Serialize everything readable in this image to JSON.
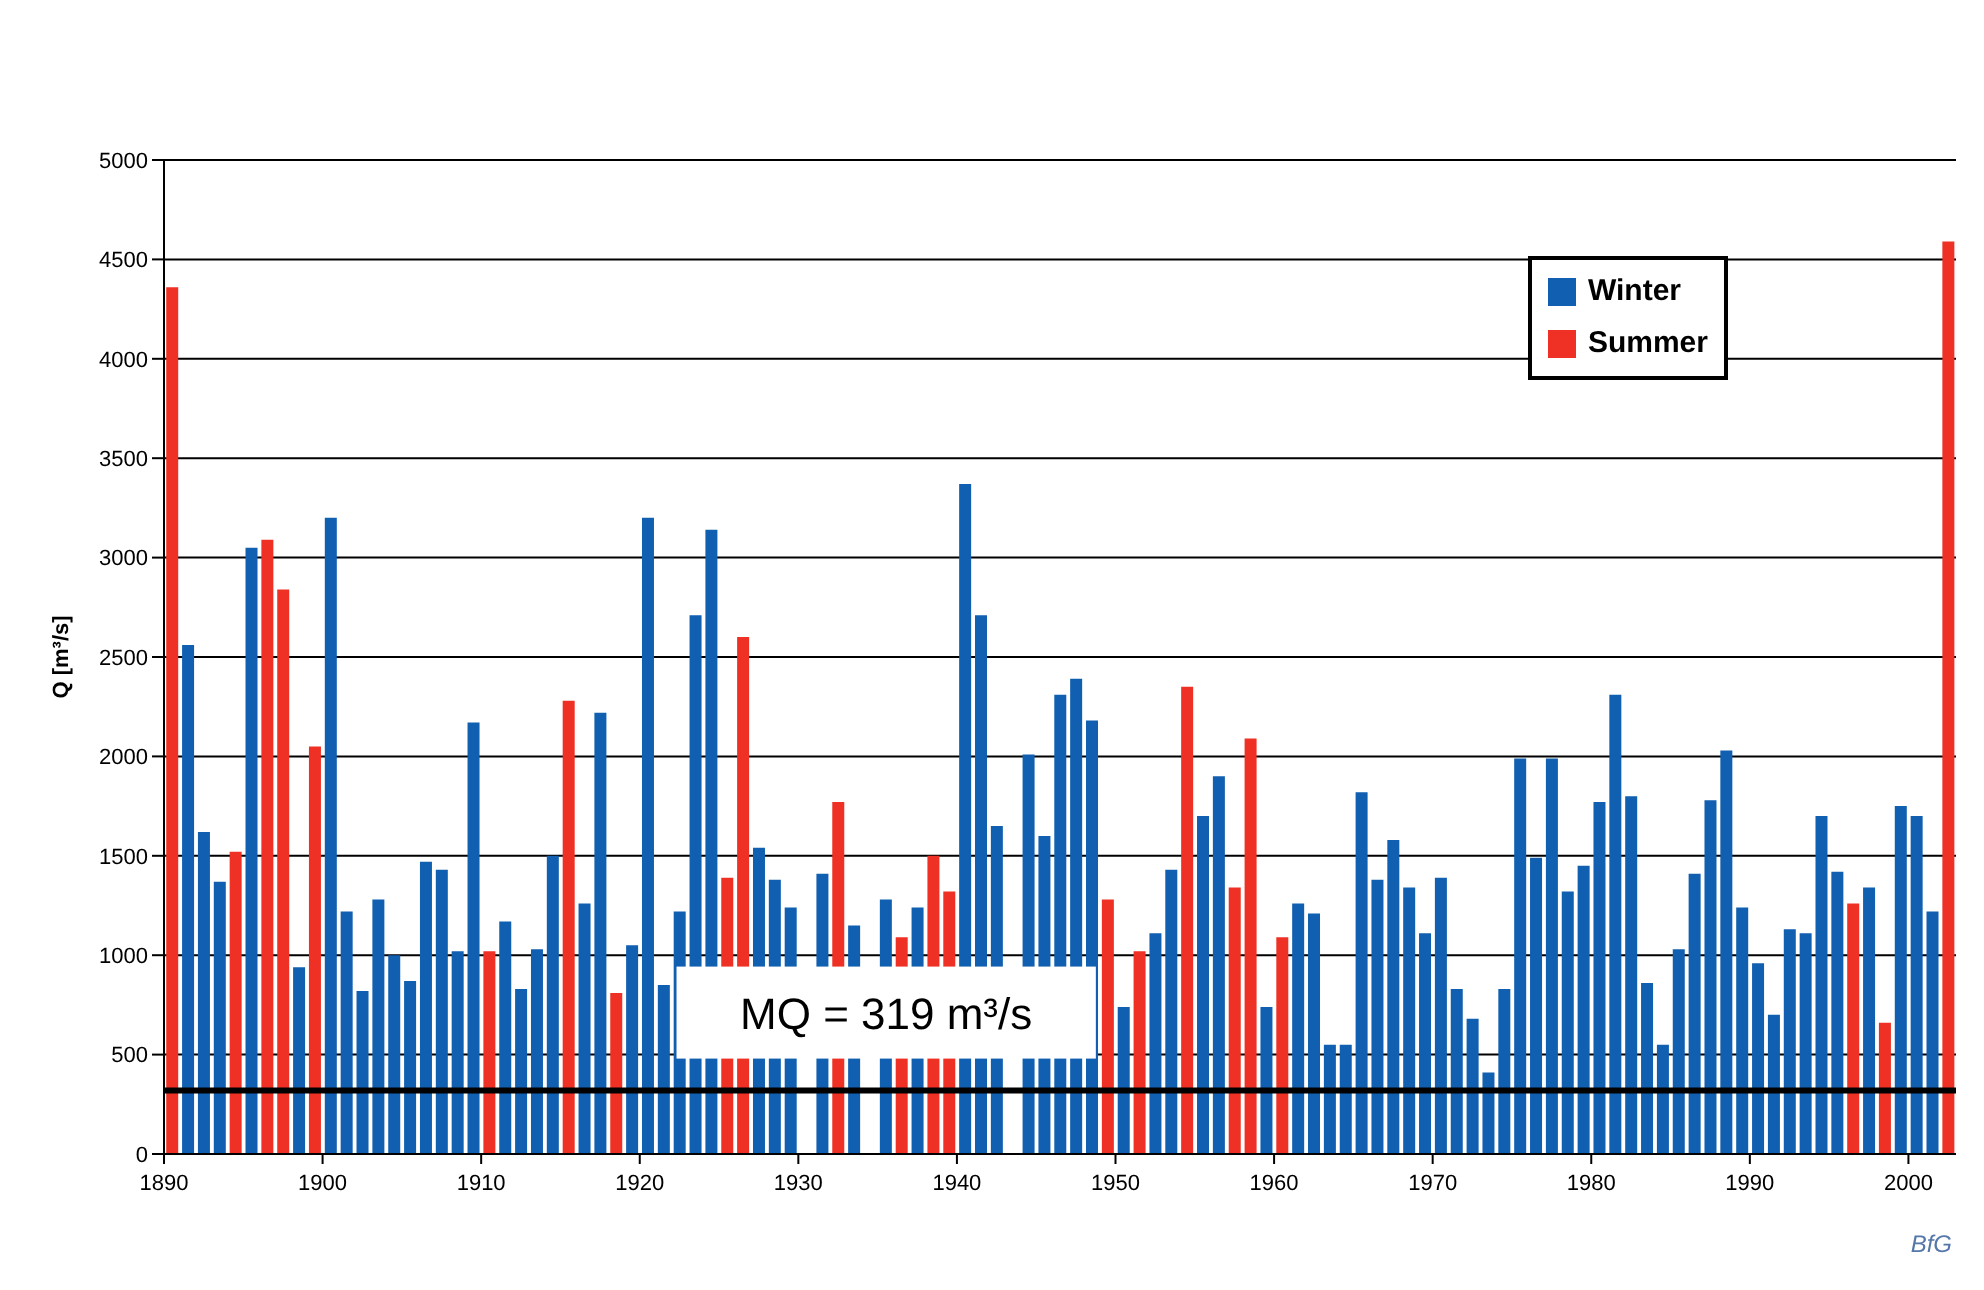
{
  "chart_data": {
    "type": "bar",
    "ylabel": "Q [m³/s]",
    "stacked": true,
    "categories": [
      "1890",
      null,
      null,
      null,
      null,
      null,
      null,
      null,
      null,
      null,
      "1900",
      null,
      null,
      null,
      null,
      null,
      null,
      null,
      null,
      null,
      "1910",
      null,
      null,
      null,
      null,
      null,
      null,
      null,
      null,
      null,
      "1920",
      null,
      null,
      null,
      null,
      null,
      null,
      null,
      null,
      null,
      "1930",
      null,
      null,
      null,
      null,
      null,
      null,
      null,
      null,
      null,
      "1940",
      null,
      null,
      null,
      null,
      null,
      null,
      null,
      null,
      null,
      "1950",
      null,
      null,
      null,
      null,
      null,
      null,
      null,
      null,
      null,
      "1960",
      null,
      null,
      null,
      null,
      null,
      null,
      null,
      null,
      null,
      "1970",
      null,
      null,
      null,
      null,
      null,
      null,
      null,
      null,
      null,
      "1980",
      null,
      null,
      null,
      null,
      null,
      null,
      null,
      null,
      null,
      "1990",
      null,
      null,
      null,
      null,
      null,
      null,
      null,
      null,
      null,
      "2000",
      null,
      null
    ],
    "series": [
      {
        "name": "Winter",
        "color": "#105fb0",
        "values": [
          null,
          2560,
          1620,
          1370,
          null,
          3050,
          null,
          null,
          940,
          null,
          3200,
          1220,
          820,
          1280,
          1000,
          870,
          1470,
          1430,
          1020,
          2170,
          null,
          1170,
          830,
          1030,
          1500,
          null,
          1260,
          2220,
          null,
          1050,
          3200,
          850,
          1220,
          2710,
          3140,
          null,
          null,
          1540,
          1380,
          1240,
          null,
          1410,
          null,
          1150,
          null,
          1280,
          null,
          1240,
          null,
          null,
          3370,
          2710,
          1650,
          null,
          2010,
          1600,
          2310,
          2390,
          2180,
          null,
          740,
          null,
          1110,
          1430,
          null,
          1700,
          1900,
          null,
          null,
          740,
          null,
          1260,
          1210,
          550,
          550,
          1820,
          1380,
          1580,
          1340,
          1110,
          1390,
          830,
          680,
          410,
          830,
          1990,
          1490,
          1990,
          1320,
          1450,
          1770,
          2310,
          1800,
          860,
          550,
          1030,
          1410,
          1780,
          2030,
          1240,
          960,
          700,
          1130,
          1110,
          1700,
          1420,
          null,
          1340,
          null,
          1750,
          1700,
          1220,
          null
        ]
      },
      {
        "name": "Summer",
        "color": "#ee3124",
        "values": [
          4360,
          null,
          null,
          null,
          1520,
          null,
          3090,
          2840,
          null,
          2050,
          null,
          null,
          null,
          null,
          null,
          null,
          null,
          null,
          null,
          null,
          1020,
          null,
          null,
          null,
          null,
          2280,
          null,
          null,
          810,
          null,
          null,
          null,
          null,
          null,
          null,
          1390,
          2600,
          null,
          null,
          null,
          null,
          null,
          1770,
          null,
          null,
          null,
          1090,
          null,
          1500,
          1320,
          null,
          null,
          null,
          null,
          null,
          null,
          null,
          null,
          null,
          1280,
          null,
          1020,
          null,
          null,
          2350,
          null,
          null,
          1340,
          2090,
          null,
          1090,
          null,
          null,
          null,
          null,
          null,
          null,
          null,
          null,
          null,
          null,
          null,
          null,
          null,
          null,
          null,
          null,
          null,
          null,
          null,
          null,
          null,
          null,
          null,
          null,
          null,
          null,
          null,
          null,
          null,
          null,
          null,
          null,
          null,
          null,
          null,
          1260,
          null,
          660,
          null,
          null,
          null,
          4590
        ]
      }
    ],
    "ylim": [
      0,
      5000
    ],
    "yticks": [
      0,
      500,
      1000,
      1500,
      2000,
      2500,
      3000,
      3500,
      4000,
      4500,
      5000
    ],
    "grid": "y",
    "legend": "top right",
    "ref_lines": [
      {
        "axis": "y",
        "value": 319,
        "label": "MQ = 319 m³/s",
        "color": "#000000"
      }
    ],
    "annotations": [
      "BfG"
    ]
  }
}
